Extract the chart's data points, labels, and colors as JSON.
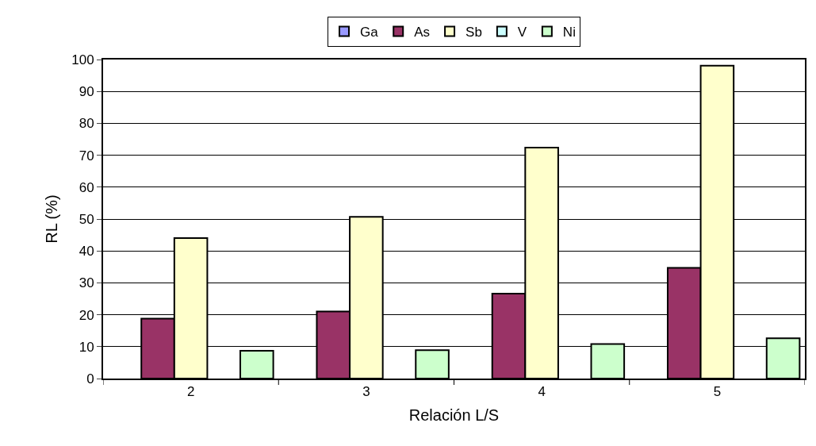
{
  "chart_data": {
    "type": "bar",
    "xlabel": "Relación L/S",
    "ylabel": "RL (%)",
    "categories": [
      "2",
      "3",
      "4",
      "5"
    ],
    "series": [
      {
        "name": "Ga",
        "color": "#9999ff",
        "values": [
          null,
          null,
          null,
          null
        ]
      },
      {
        "name": "As",
        "color": "#993366",
        "values": [
          18.8,
          21.0,
          26.6,
          34.7
        ]
      },
      {
        "name": "Sb",
        "color": "#ffffcc",
        "values": [
          44.0,
          50.7,
          72.4,
          98.1
        ]
      },
      {
        "name": "V",
        "color": "#ccffff",
        "values": [
          null,
          null,
          null,
          null
        ]
      },
      {
        "name": "Ni",
        "color": "#ccffcc",
        "values": [
          8.7,
          8.9,
          10.8,
          12.6
        ]
      }
    ],
    "ylim": [
      0,
      100
    ],
    "yticks": [
      0,
      10,
      20,
      30,
      40,
      50,
      60,
      70,
      80,
      90,
      100
    ],
    "grid": "y",
    "legend": "top"
  }
}
